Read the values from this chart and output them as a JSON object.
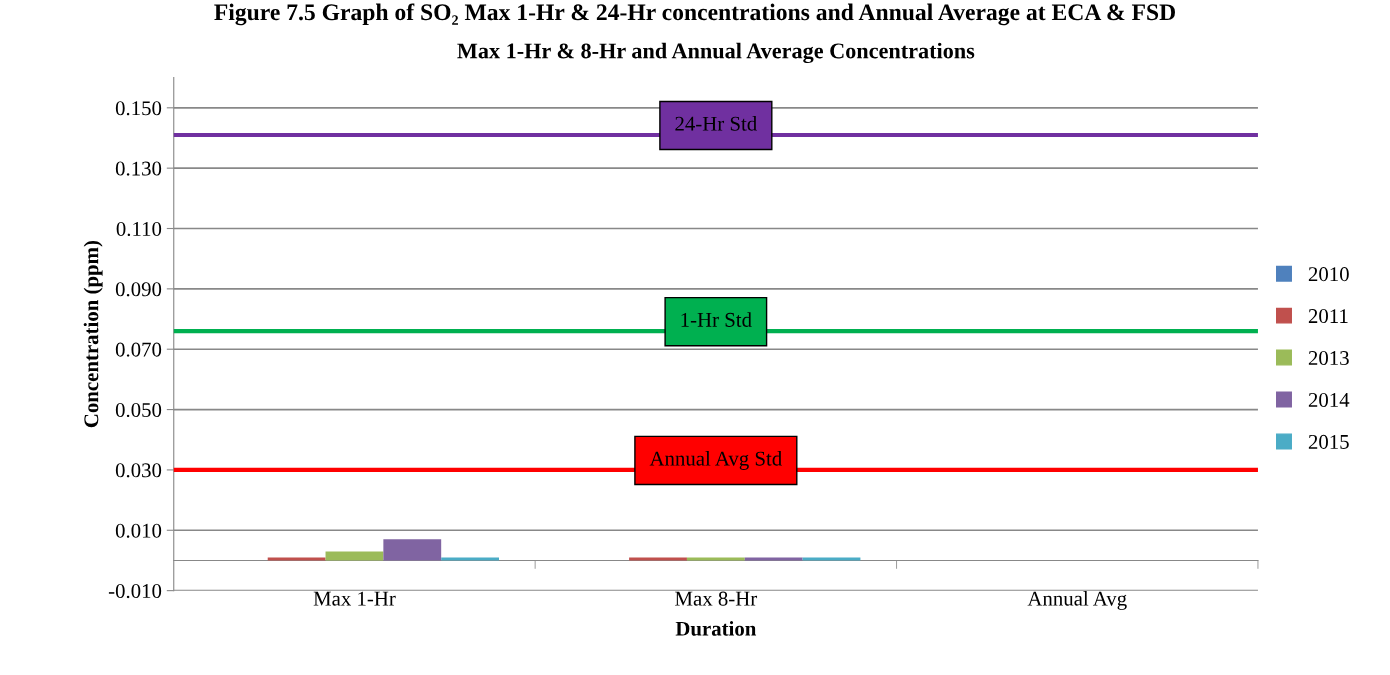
{
  "chart_data": {
    "type": "bar",
    "title": "Figure 7.5 Graph of SO₂ Max 1-Hr & 24-Hr concentrations and Annual Average at ECA & FSD",
    "subtitle": "Max 1-Hr & 8-Hr and Annual Average Concentrations",
    "xlabel": "Duration",
    "ylabel": "Concentration (ppm)",
    "categories": [
      "Max 1-Hr",
      "Max 8-Hr",
      "Annual Avg"
    ],
    "series": [
      {
        "name": "2010",
        "color": "#4f81bd",
        "values": [
          0,
          0,
          0
        ]
      },
      {
        "name": "2011",
        "color": "#c0504d",
        "values": [
          0.001,
          0.001,
          0
        ]
      },
      {
        "name": "2013",
        "color": "#9bbb59",
        "values": [
          0.003,
          0.001,
          0
        ]
      },
      {
        "name": "2014",
        "color": "#8064a2",
        "values": [
          0.007,
          0.001,
          0
        ]
      },
      {
        "name": "2015",
        "color": "#4bacc6",
        "values": [
          0.001,
          0.001,
          0
        ]
      }
    ],
    "ylim": [
      -0.01,
      0.16
    ],
    "yticks": [
      {
        "value": -0.01,
        "label": "-0.010"
      },
      {
        "value": 0.01,
        "label": "0.010"
      },
      {
        "value": 0.03,
        "label": "0.030"
      },
      {
        "value": 0.05,
        "label": "0.050"
      },
      {
        "value": 0.07,
        "label": "0.070"
      },
      {
        "value": 0.09,
        "label": "0.090"
      },
      {
        "value": 0.11,
        "label": "0.110"
      },
      {
        "value": 0.13,
        "label": "0.130"
      },
      {
        "value": 0.15,
        "label": "0.150"
      }
    ],
    "ref_lines": [
      {
        "axis": "y",
        "value": 0.141,
        "label": "24-Hr Std",
        "color": "#7030a0"
      },
      {
        "axis": "y",
        "value": 0.076,
        "label": "1-Hr Std",
        "color": "#00b050"
      },
      {
        "axis": "y",
        "value": 0.03,
        "label": "Annual Avg Std",
        "color": "#ff0000"
      }
    ],
    "grid": "y",
    "legend": "right"
  }
}
